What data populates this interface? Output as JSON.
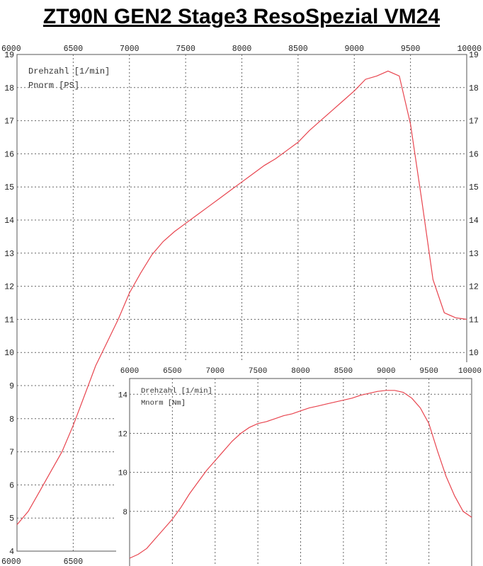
{
  "title": "ZT90N GEN2 Stage3 ResoSpezial VM24",
  "chart_data": [
    {
      "type": "line",
      "title": "ZT90N GEN2 Stage3 ResoSpezial VM24",
      "xlabel": "Drehzahl [1/min]",
      "ylabel": "Pnorm [PS]",
      "xlim": [
        6000,
        10000
      ],
      "ylim": [
        4,
        19
      ],
      "x_ticks": [
        "6000",
        "6500",
        "7000",
        "7500",
        "8000",
        "8500",
        "9000",
        "9500",
        "10000"
      ],
      "y_ticks": [
        "4",
        "5",
        "6",
        "7",
        "8",
        "9",
        "10",
        "11",
        "12",
        "13",
        "14",
        "15",
        "16",
        "17",
        "18",
        "19"
      ],
      "grid": true,
      "color": "#e8454f",
      "series": [
        {
          "x": [
            6000,
            6100,
            6200,
            6300,
            6400,
            6500,
            6600,
            6700,
            6800,
            6900,
            7000,
            7100,
            7200,
            7300,
            7400,
            7500,
            7600,
            7700,
            7800,
            7900,
            8000,
            8100,
            8200,
            8300,
            8400,
            8500,
            8600,
            8700,
            8800,
            8900,
            9000,
            9100,
            9200,
            9300,
            9400,
            9500,
            9600,
            9700,
            9800,
            9900,
            10000
          ],
          "y": [
            4.8,
            5.2,
            5.8,
            6.4,
            7.0,
            7.8,
            8.7,
            9.6,
            10.3,
            11.0,
            11.8,
            12.4,
            12.95,
            13.35,
            13.65,
            13.9,
            14.15,
            14.4,
            14.65,
            14.9,
            15.15,
            15.4,
            15.65,
            15.85,
            16.1,
            16.35,
            16.7,
            17.0,
            17.3,
            17.6,
            17.9,
            18.25,
            18.35,
            18.5,
            18.35,
            16.9,
            14.6,
            12.2,
            11.2,
            11.05,
            11.0
          ]
        }
      ]
    },
    {
      "type": "line",
      "xlabel": "Drehzahl [1/min]",
      "ylabel": "Mnorm [Nm]",
      "xlim": [
        6000,
        10000
      ],
      "ylim": [
        5.2,
        14.7
      ],
      "x_ticks": [
        "6000",
        "6500",
        "7000",
        "7500",
        "8000",
        "8500",
        "9000",
        "9500",
        "10000"
      ],
      "y_ticks": [
        "8",
        "10",
        "12",
        "14"
      ],
      "grid": true,
      "color": "#e8454f",
      "series": [
        {
          "x": [
            6000,
            6100,
            6200,
            6300,
            6400,
            6500,
            6600,
            6700,
            6800,
            6900,
            7000,
            7100,
            7200,
            7300,
            7400,
            7500,
            7600,
            7700,
            7800,
            7900,
            8000,
            8100,
            8200,
            8300,
            8400,
            8500,
            8600,
            8700,
            8800,
            8900,
            9000,
            9100,
            9200,
            9300,
            9400,
            9500,
            9600,
            9700,
            9800,
            9900,
            10000
          ],
          "y": [
            5.6,
            5.8,
            6.1,
            6.6,
            7.1,
            7.6,
            8.2,
            8.9,
            9.5,
            10.1,
            10.6,
            11.1,
            11.6,
            12.0,
            12.3,
            12.5,
            12.6,
            12.75,
            12.9,
            13.0,
            13.15,
            13.3,
            13.4,
            13.5,
            13.6,
            13.7,
            13.8,
            13.95,
            14.05,
            14.15,
            14.2,
            14.2,
            14.1,
            13.8,
            13.3,
            12.5,
            11.1,
            9.8,
            8.8,
            8.0,
            7.7
          ]
        }
      ]
    }
  ]
}
